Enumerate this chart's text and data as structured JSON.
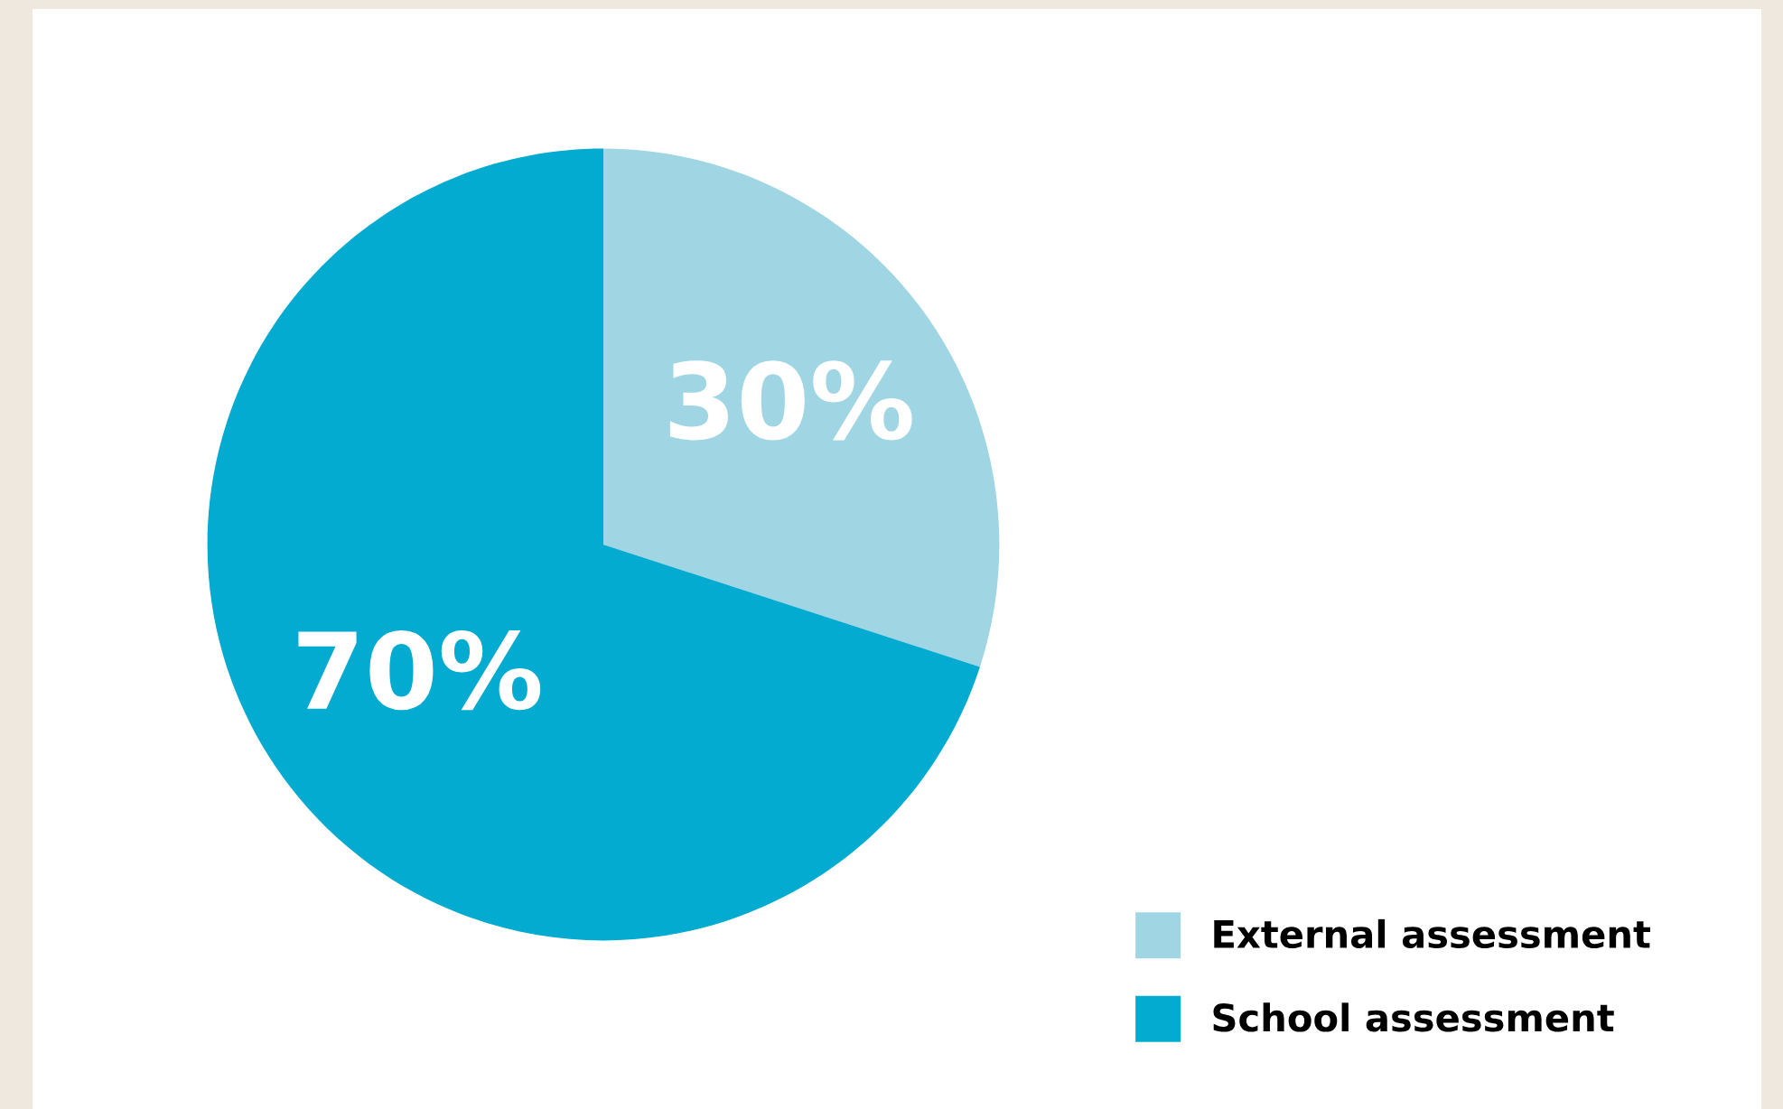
{
  "chart_data": {
    "type": "pie",
    "categories": [
      "External assessment",
      "School assessment"
    ],
    "values": [
      30,
      70
    ],
    "colors": [
      "#a0d6e4",
      "#04abd0"
    ],
    "value_labels": [
      "30%",
      "70%"
    ],
    "legend": "bottom right"
  }
}
